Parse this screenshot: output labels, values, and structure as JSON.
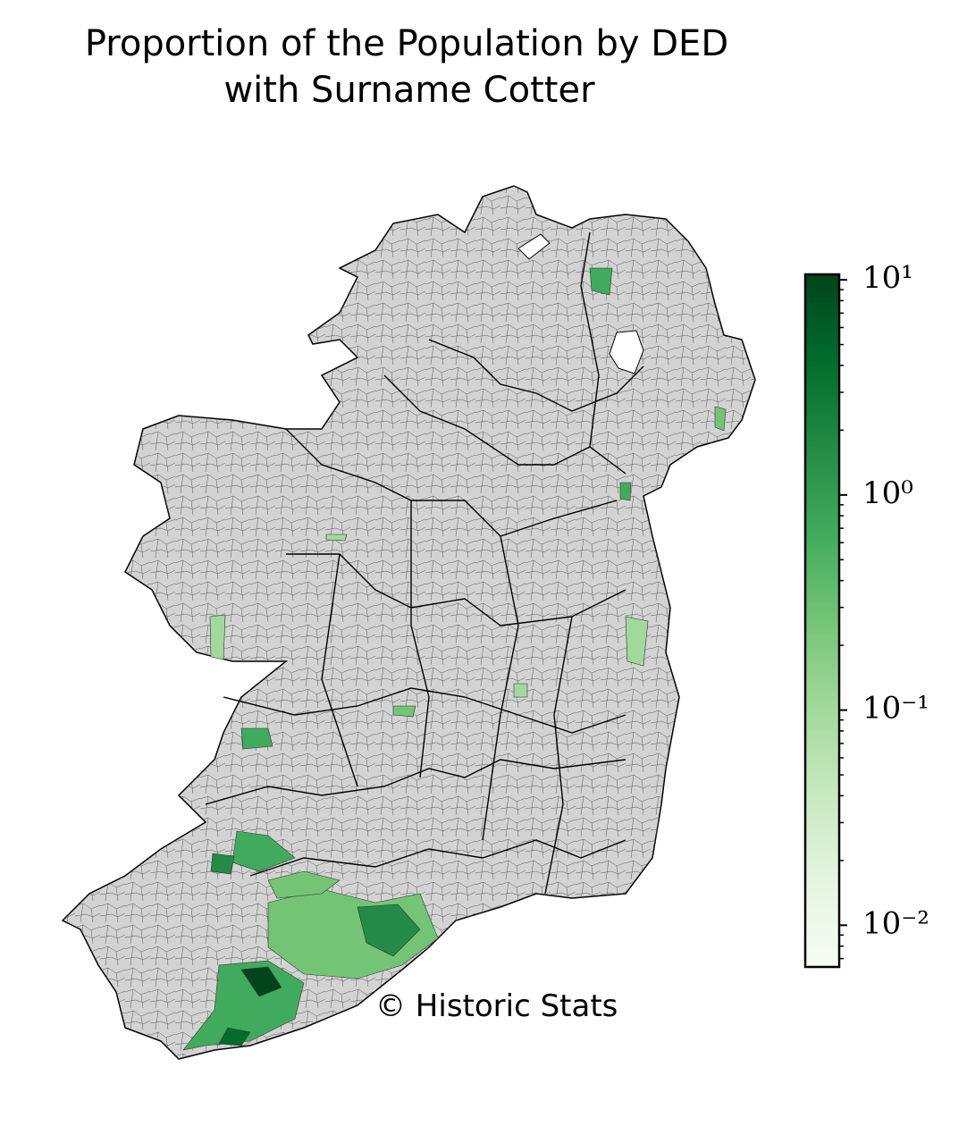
{
  "chart_data": {
    "type": "choropleth",
    "title": [
      "Proportion of the Population by DED",
      "with Surname Cotter"
    ],
    "watermark": "© Historic Stats",
    "map_fill": "#d3d3d3",
    "colorbar": {
      "scale": "log",
      "clim": [
        0.0064,
        10.6
      ],
      "colors": [
        "#f7fcf5",
        "#e5f5e0",
        "#c7e9c0",
        "#a1d99b",
        "#74c476",
        "#41ab5d",
        "#238b45",
        "#006d2c",
        "#00441b"
      ],
      "ticks": [
        {
          "value": 10,
          "label": "10¹"
        },
        {
          "value": 1,
          "label": "10⁰"
        },
        {
          "value": 0.1,
          "label": "10⁻¹"
        },
        {
          "value": 0.01,
          "label": "10⁻²"
        }
      ],
      "minor_ticks": [
        0.007,
        0.008,
        0.009,
        0.02,
        0.03,
        0.04,
        0.05,
        0.06,
        0.07,
        0.08,
        0.09,
        0.2,
        0.3,
        0.4,
        0.5,
        0.6,
        0.7,
        0.8,
        0.9,
        2,
        3,
        4,
        5,
        6,
        7,
        8,
        9
      ]
    }
  }
}
